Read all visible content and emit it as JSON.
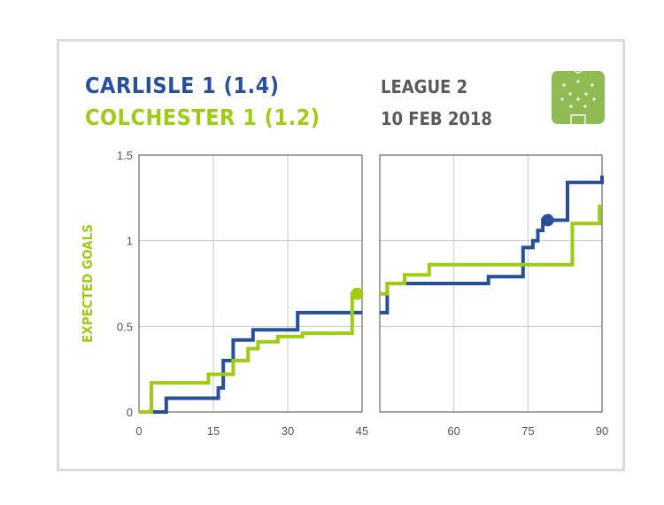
{
  "header": {
    "home_team": "CARLISLE 1 (1.4)",
    "away_team": "COLCHESTER 1 (1.2)",
    "competition": "LEAGUE 2",
    "date": "10 FEB 2018"
  },
  "colors": {
    "home": "#28509a",
    "away": "#9dcc13",
    "grid": "#c8c8c8",
    "frame": "#4a4a4a",
    "pitch": "#8fbb52"
  },
  "icons": {
    "pitch": "football-pitch-icon"
  },
  "chart_data": {
    "type": "line",
    "ylabel": "EXPECTED GOALS",
    "xlabel": "",
    "ylim": [
      0,
      1.5
    ],
    "yticks": [
      "0",
      "0.5",
      "1",
      "1.5"
    ],
    "grid": true,
    "legend": "none",
    "panels": [
      {
        "name": "first-half",
        "xlim": [
          0,
          45
        ],
        "xticks": [
          "0",
          "15",
          "30",
          "45"
        ]
      },
      {
        "name": "second-half",
        "xlim": [
          45,
          90
        ],
        "xticks": [
          "60",
          "75",
          "90"
        ]
      }
    ],
    "series": [
      {
        "name": "CARLISLE",
        "color": "#28509a",
        "steps": [
          [
            0,
            0
          ],
          [
            5.5,
            0.08
          ],
          [
            16,
            0.14
          ],
          [
            17,
            0.3
          ],
          [
            19,
            0.42
          ],
          [
            23,
            0.48
          ],
          [
            32,
            0.58
          ],
          [
            46.5,
            0.75
          ],
          [
            62,
            0.75
          ],
          [
            67,
            0.79
          ],
          [
            74,
            0.96
          ],
          [
            76,
            1.0
          ],
          [
            77,
            1.06
          ],
          [
            78,
            1.12
          ],
          [
            80,
            1.12
          ],
          [
            83,
            1.34
          ],
          [
            90,
            1.38
          ]
        ],
        "markers": [
          {
            "x": 79,
            "y": 1.12
          }
        ]
      },
      {
        "name": "COLCHESTER",
        "color": "#9dcc13",
        "steps": [
          [
            0,
            0
          ],
          [
            2.5,
            0.17
          ],
          [
            14,
            0.22
          ],
          [
            19,
            0.3
          ],
          [
            22,
            0.37
          ],
          [
            24,
            0.41
          ],
          [
            28,
            0.44
          ],
          [
            33,
            0.46
          ],
          [
            43,
            0.69
          ],
          [
            46.5,
            0.75
          ],
          [
            50,
            0.8
          ],
          [
            55,
            0.86
          ],
          [
            78,
            0.86
          ],
          [
            84,
            1.1
          ],
          [
            89.5,
            1.2
          ]
        ],
        "markers": [
          {
            "x": 44,
            "y": 0.69
          }
        ]
      }
    ]
  }
}
